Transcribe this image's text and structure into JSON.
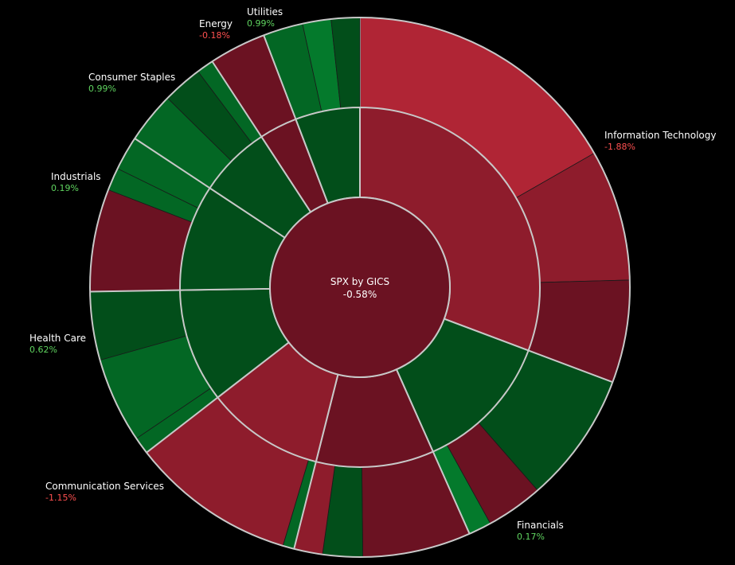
{
  "colors": {
    "background": "#000000",
    "border": "#c8c8c8",
    "positive_text": "#5fd35f",
    "negative_text": "#ff5050",
    "red_bright": "#b02535",
    "red_mid": "#8e1c2c",
    "red_dark": "#6b1222",
    "green_bright": "#047a2c",
    "green_mid": "#036724",
    "green_dark": "#024e1a"
  },
  "chart_data": {
    "type": "sunburst",
    "title": "SPX by GICS",
    "total_change": "-0.58%",
    "sectors": [
      {
        "name": "Information Technology",
        "change": "-1.88%",
        "direction": "negative",
        "shade": "mid",
        "weight": 90,
        "children": [
          {
            "weight": 49,
            "direction": "negative",
            "shade": "bright"
          },
          {
            "weight": 23,
            "direction": "negative",
            "shade": "mid"
          },
          {
            "weight": 18,
            "direction": "negative",
            "shade": "dark"
          }
        ]
      },
      {
        "name": "Financials",
        "change": "0.17%",
        "direction": "positive",
        "shade": "dark",
        "weight": 37,
        "children": [
          {
            "weight": 23,
            "direction": "positive",
            "shade": "dark"
          },
          {
            "weight": 10,
            "direction": "negative",
            "shade": "dark"
          },
          {
            "weight": 4,
            "direction": "positive",
            "shade": "bright"
          }
        ]
      },
      {
        "name": "",
        "change": "",
        "direction": "negative",
        "shade": "dark",
        "weight": 31,
        "children": [
          {
            "weight": 19,
            "direction": "negative",
            "shade": "dark"
          },
          {
            "weight": 7,
            "direction": "positive",
            "shade": "dark"
          },
          {
            "weight": 5,
            "direction": "negative",
            "shade": "mid"
          }
        ]
      },
      {
        "name": "Communication Services",
        "change": "-1.15%",
        "direction": "negative",
        "shade": "mid",
        "weight": 31,
        "children": [
          {
            "weight": 2,
            "direction": "positive",
            "shade": "mid"
          },
          {
            "weight": 29,
            "direction": "negative",
            "shade": "mid"
          }
        ]
      },
      {
        "name": "Health Care",
        "change": "0.62%",
        "direction": "positive",
        "shade": "dark",
        "weight": 30,
        "children": [
          {
            "weight": 3,
            "direction": "positive",
            "shade": "mid"
          },
          {
            "weight": 15,
            "direction": "positive",
            "shade": "mid"
          },
          {
            "weight": 12,
            "direction": "positive",
            "shade": "dark"
          }
        ]
      },
      {
        "name": "Industrials",
        "change": "0.19%",
        "direction": "positive",
        "shade": "dark",
        "weight": 28,
        "children": [
          {
            "weight": 18,
            "direction": "negative",
            "shade": "dark"
          },
          {
            "weight": 4,
            "direction": "positive",
            "shade": "mid"
          },
          {
            "weight": 6,
            "direction": "positive",
            "shade": "mid"
          }
        ]
      },
      {
        "name": "Consumer Staples",
        "change": "0.99%",
        "direction": "positive",
        "shade": "dark",
        "weight": 19,
        "children": [
          {
            "weight": 9,
            "direction": "positive",
            "shade": "mid"
          },
          {
            "weight": 7,
            "direction": "positive",
            "shade": "dark"
          },
          {
            "weight": 3,
            "direction": "positive",
            "shade": "mid"
          }
        ]
      },
      {
        "name": "Energy",
        "change": "-0.18%",
        "direction": "negative",
        "shade": "dark",
        "weight": 10,
        "children": [
          {
            "weight": 10,
            "direction": "negative",
            "shade": "dark"
          }
        ]
      },
      {
        "name": "Utilities",
        "change": "0.99%",
        "direction": "positive",
        "shade": "dark",
        "weight": 17,
        "children": [
          {
            "weight": 7,
            "direction": "positive",
            "shade": "mid"
          },
          {
            "weight": 5,
            "direction": "positive",
            "shade": "bright"
          },
          {
            "weight": 5,
            "direction": "positive",
            "shade": "dark"
          }
        ]
      }
    ]
  }
}
